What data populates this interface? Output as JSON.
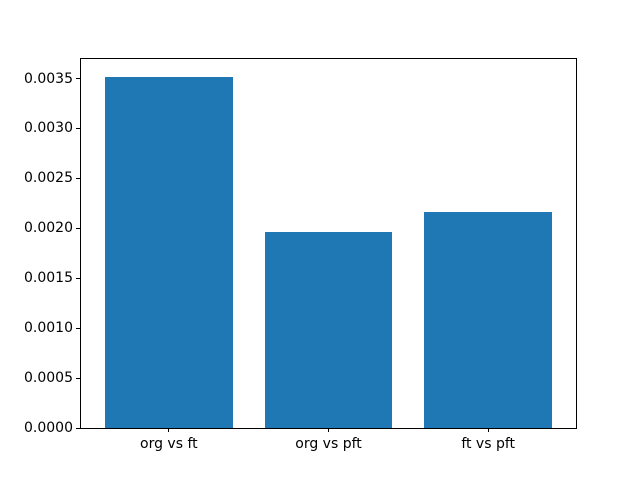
{
  "figure": {
    "background": "#ffffff",
    "title": ""
  },
  "chart_data": {
    "type": "bar",
    "title": "",
    "xlabel": "",
    "ylabel": "",
    "categories": [
      "org vs ft",
      "org vs pft",
      "ft vs pft"
    ],
    "values": [
      0.00352,
      0.00196,
      0.00216
    ],
    "bar_color": "#1f77b4",
    "ylim": [
      0,
      0.003696
    ],
    "xlim": [
      -0.55,
      2.55
    ],
    "bar_width_data_units": 0.8,
    "y_ticks": [
      {
        "value": 0.0,
        "label": "0.0000"
      },
      {
        "value": 0.0005,
        "label": "0.0005"
      },
      {
        "value": 0.001,
        "label": "0.0010"
      },
      {
        "value": 0.0015,
        "label": "0.0015"
      },
      {
        "value": 0.002,
        "label": "0.0020"
      },
      {
        "value": 0.0025,
        "label": "0.0025"
      },
      {
        "value": 0.003,
        "label": "0.0030"
      },
      {
        "value": 0.0035,
        "label": "0.0035"
      }
    ],
    "grid": false,
    "legend": null
  }
}
